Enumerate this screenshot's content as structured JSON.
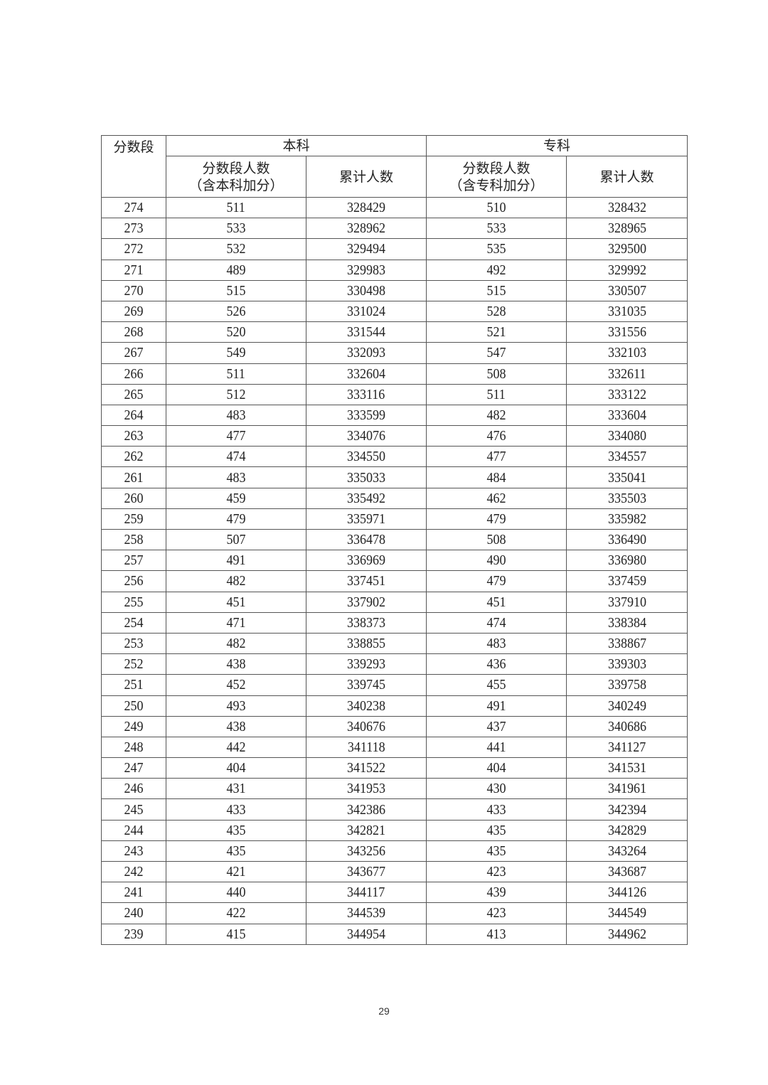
{
  "table": {
    "headers": {
      "score_band": "分数段",
      "undergrad": "本科",
      "junior": "专科",
      "undergrad_count": "分数段人数",
      "undergrad_count_note": "（含本科加分）",
      "undergrad_cum": "累计人数",
      "junior_count": "分数段人数",
      "junior_count_note": "（含专科加分）",
      "junior_cum": "累计人数"
    },
    "rows": [
      [
        "274",
        "511",
        "328429",
        "510",
        "328432"
      ],
      [
        "273",
        "533",
        "328962",
        "533",
        "328965"
      ],
      [
        "272",
        "532",
        "329494",
        "535",
        "329500"
      ],
      [
        "271",
        "489",
        "329983",
        "492",
        "329992"
      ],
      [
        "270",
        "515",
        "330498",
        "515",
        "330507"
      ],
      [
        "269",
        "526",
        "331024",
        "528",
        "331035"
      ],
      [
        "268",
        "520",
        "331544",
        "521",
        "331556"
      ],
      [
        "267",
        "549",
        "332093",
        "547",
        "332103"
      ],
      [
        "266",
        "511",
        "332604",
        "508",
        "332611"
      ],
      [
        "265",
        "512",
        "333116",
        "511",
        "333122"
      ],
      [
        "264",
        "483",
        "333599",
        "482",
        "333604"
      ],
      [
        "263",
        "477",
        "334076",
        "476",
        "334080"
      ],
      [
        "262",
        "474",
        "334550",
        "477",
        "334557"
      ],
      [
        "261",
        "483",
        "335033",
        "484",
        "335041"
      ],
      [
        "260",
        "459",
        "335492",
        "462",
        "335503"
      ],
      [
        "259",
        "479",
        "335971",
        "479",
        "335982"
      ],
      [
        "258",
        "507",
        "336478",
        "508",
        "336490"
      ],
      [
        "257",
        "491",
        "336969",
        "490",
        "336980"
      ],
      [
        "256",
        "482",
        "337451",
        "479",
        "337459"
      ],
      [
        "255",
        "451",
        "337902",
        "451",
        "337910"
      ],
      [
        "254",
        "471",
        "338373",
        "474",
        "338384"
      ],
      [
        "253",
        "482",
        "338855",
        "483",
        "338867"
      ],
      [
        "252",
        "438",
        "339293",
        "436",
        "339303"
      ],
      [
        "251",
        "452",
        "339745",
        "455",
        "339758"
      ],
      [
        "250",
        "493",
        "340238",
        "491",
        "340249"
      ],
      [
        "249",
        "438",
        "340676",
        "437",
        "340686"
      ],
      [
        "248",
        "442",
        "341118",
        "441",
        "341127"
      ],
      [
        "247",
        "404",
        "341522",
        "404",
        "341531"
      ],
      [
        "246",
        "431",
        "341953",
        "430",
        "341961"
      ],
      [
        "245",
        "433",
        "342386",
        "433",
        "342394"
      ],
      [
        "244",
        "435",
        "342821",
        "435",
        "342829"
      ],
      [
        "243",
        "435",
        "343256",
        "435",
        "343264"
      ],
      [
        "242",
        "421",
        "343677",
        "423",
        "343687"
      ],
      [
        "241",
        "440",
        "344117",
        "439",
        "344126"
      ],
      [
        "240",
        "422",
        "344539",
        "423",
        "344549"
      ],
      [
        "239",
        "415",
        "344954",
        "413",
        "344962"
      ]
    ]
  },
  "page_number": "29"
}
